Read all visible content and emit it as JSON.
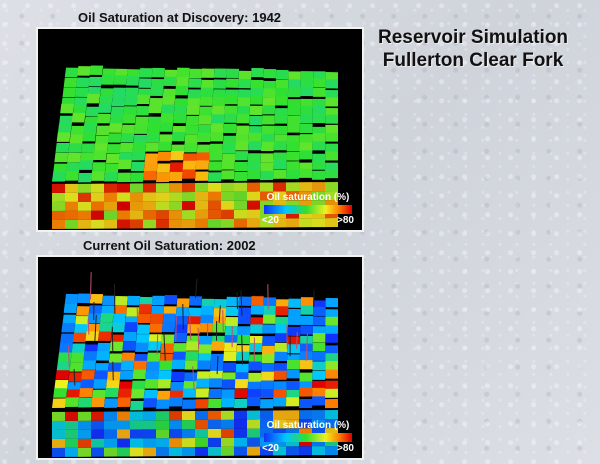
{
  "slide": {
    "title_line1": "Reservoir Simulation",
    "title_line2": "Fullerton Clear Fork"
  },
  "panels": [
    {
      "title": "Oil Saturation at Discovery: 1942",
      "legend": {
        "title": "Oil saturation (%)",
        "min_label": "<20",
        "max_label": ">80"
      }
    },
    {
      "title": "Current Oil Saturation: 2002",
      "legend": {
        "title": "Oil saturation (%)",
        "min_label": "<20",
        "max_label": ">80"
      }
    }
  ],
  "colors": {
    "low": "#1030ff",
    "mid": "#30e030",
    "high": "#e00000"
  }
}
